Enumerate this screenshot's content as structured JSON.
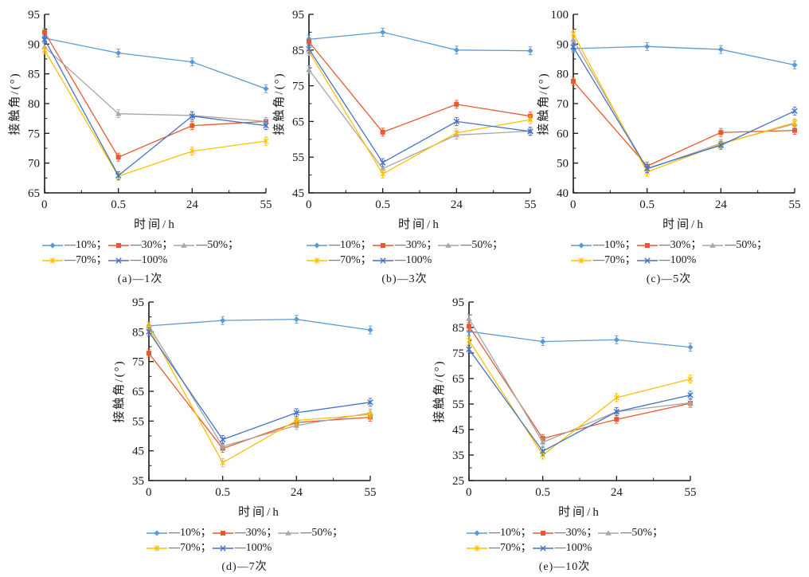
{
  "figure": {
    "xlabel": "时间/h",
    "ylabel": "接触角/(°)",
    "x_categories": [
      "0",
      "0.5",
      "24",
      "55"
    ],
    "legend": [
      {
        "name": "10%",
        "label": "—10%；",
        "color": "#5B9BD5",
        "marker": "diamond"
      },
      {
        "name": "30%",
        "label": "—30%；",
        "color": "#E8582C",
        "marker": "square"
      },
      {
        "name": "50%",
        "label": "—50%；",
        "color": "#A6A6A6",
        "marker": "triangle"
      },
      {
        "name": "70%",
        "label": "—70%；",
        "color": "#FFC000",
        "marker": "star"
      },
      {
        "name": "100%",
        "label": "—100%",
        "color": "#4472C4",
        "marker": "xcross"
      }
    ],
    "legend_rows": [
      [
        0,
        1,
        2
      ],
      [
        3,
        4
      ]
    ],
    "axis_color": "#1a1a1a"
  },
  "chart_data": [
    {
      "type": "line",
      "id": "a",
      "caption": "(a)—1次",
      "xlabel": "时间/h",
      "ylabel": "接触角/(°)",
      "x": [
        "0",
        "0.5",
        "24",
        "55"
      ],
      "ylim": [
        65,
        95
      ],
      "yticks": [
        65,
        70,
        75,
        80,
        85,
        90,
        95
      ],
      "series": [
        {
          "name": "10%",
          "values": [
            91.0,
            88.5,
            87.0,
            82.5
          ]
        },
        {
          "name": "30%",
          "values": [
            92.0,
            71.0,
            76.3,
            77.0
          ]
        },
        {
          "name": "50%",
          "values": [
            89.5,
            78.3,
            78.0,
            77.0
          ]
        },
        {
          "name": "70%",
          "values": [
            89.0,
            67.8,
            72.0,
            73.7
          ]
        },
        {
          "name": "100%",
          "values": [
            90.8,
            67.9,
            77.9,
            76.3
          ]
        }
      ]
    },
    {
      "type": "line",
      "id": "b",
      "caption": "(b)—3次",
      "xlabel": "时间/h",
      "ylabel": "接触角/(°)",
      "x": [
        "0",
        "0.5",
        "24",
        "55"
      ],
      "ylim": [
        45,
        95
      ],
      "yticks": [
        45,
        55,
        65,
        75,
        85,
        95
      ],
      "series": [
        {
          "name": "10%",
          "values": [
            88.0,
            90.0,
            85.0,
            84.8
          ]
        },
        {
          "name": "30%",
          "values": [
            87.3,
            62.0,
            69.8,
            66.5
          ]
        },
        {
          "name": "50%",
          "values": [
            79.5,
            51.8,
            61.2,
            62.3
          ]
        },
        {
          "name": "70%",
          "values": [
            84.6,
            50.3,
            61.8,
            65.5
          ]
        },
        {
          "name": "100%",
          "values": [
            85.3,
            53.5,
            65.0,
            62.2
          ]
        }
      ]
    },
    {
      "type": "line",
      "id": "c",
      "caption": "(c)—5次",
      "xlabel": "时间/h",
      "ylabel": "接触角/(°)",
      "x": [
        "0",
        "0.5",
        "24",
        "55"
      ],
      "ylim": [
        40,
        100
      ],
      "yticks": [
        40,
        50,
        60,
        70,
        80,
        90,
        100
      ],
      "series": [
        {
          "name": "10%",
          "values": [
            88.5,
            89.2,
            88.2,
            83.0
          ]
        },
        {
          "name": "30%",
          "values": [
            77.5,
            49.0,
            60.3,
            61.0
          ]
        },
        {
          "name": "50%",
          "values": [
            91.5,
            48.0,
            56.6,
            63.2
          ]
        },
        {
          "name": "70%",
          "values": [
            93.5,
            47.0,
            56.4,
            63.6
          ]
        },
        {
          "name": "100%",
          "values": [
            89.0,
            48.2,
            56.0,
            67.5
          ]
        }
      ]
    },
    {
      "type": "line",
      "id": "d",
      "caption": "(d)—7次",
      "xlabel": "时间/h",
      "ylabel": "接触角/(°)",
      "x": [
        "0",
        "0.5",
        "24",
        "55"
      ],
      "ylim": [
        35,
        95
      ],
      "yticks": [
        35,
        45,
        55,
        65,
        75,
        85,
        95
      ],
      "series": [
        {
          "name": "10%",
          "values": [
            87.0,
            88.8,
            89.2,
            85.6
          ]
        },
        {
          "name": "30%",
          "values": [
            77.8,
            45.8,
            54.5,
            56.3
          ]
        },
        {
          "name": "50%",
          "values": [
            87.0,
            46.5,
            53.5,
            57.7
          ]
        },
        {
          "name": "70%",
          "values": [
            86.3,
            41.0,
            55.2,
            57.2
          ]
        },
        {
          "name": "100%",
          "values": [
            85.0,
            48.8,
            57.8,
            61.3
          ]
        }
      ]
    },
    {
      "type": "line",
      "id": "e",
      "caption": "(e)—10次",
      "xlabel": "时间/h",
      "ylabel": "接触角/(°)",
      "x": [
        "0",
        "0.5",
        "24",
        "55"
      ],
      "ylim": [
        25,
        95
      ],
      "yticks": [
        25,
        35,
        45,
        55,
        65,
        75,
        85,
        95
      ],
      "series": [
        {
          "name": "10%",
          "values": [
            83.5,
            79.5,
            80.2,
            77.3
          ]
        },
        {
          "name": "30%",
          "values": [
            85.5,
            41.5,
            49.0,
            55.3
          ]
        },
        {
          "name": "50%",
          "values": [
            88.5,
            40.0,
            52.0,
            55.5
          ]
        },
        {
          "name": "70%",
          "values": [
            80.0,
            35.0,
            57.5,
            64.8
          ]
        },
        {
          "name": "100%",
          "values": [
            76.5,
            36.5,
            52.0,
            58.5
          ]
        }
      ]
    }
  ]
}
